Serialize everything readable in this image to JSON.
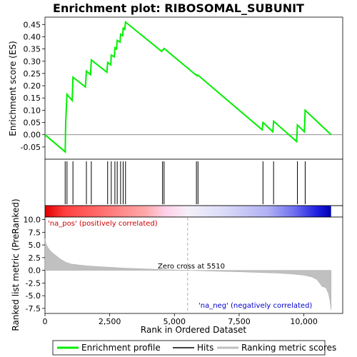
{
  "chart_data": {
    "type": "line",
    "title": "Enrichment plot: RIBOSOMAL_SUBUNIT",
    "xlabel": "Rank in Ordered Dataset",
    "colors": {
      "es_line": "#00ee00",
      "hits": "#000000",
      "metric_fill": "#c0c0c0",
      "zero_line": "#808080",
      "pos_label": "#cc0000",
      "neg_label": "#0000cc",
      "heat_pos": "#ff0000",
      "heat_neg": "#0000ff"
    },
    "es_panel": {
      "ylabel": "Enrichment score (ES)",
      "ylim": [
        -0.1,
        0.48
      ],
      "yticks": [
        -0.05,
        0.0,
        0.05,
        0.1,
        0.15,
        0.2,
        0.25,
        0.3,
        0.35,
        0.4,
        0.45
      ],
      "ytick_labels": [
        "-0.05",
        "0.00",
        "0.05",
        "0.10",
        "0.15",
        "0.20",
        "0.25",
        "0.30",
        "0.35",
        "0.40",
        "0.45"
      ],
      "series": {
        "name": "Enrichment profile",
        "x": [
          0,
          780,
          800,
          850,
          1050,
          1080,
          1560,
          1600,
          1760,
          1790,
          2390,
          2420,
          2540,
          2560,
          2680,
          2700,
          2760,
          2790,
          2900,
          2920,
          3000,
          3020,
          3080,
          3110,
          4510,
          4540,
          4570,
          4600,
          5820,
          5850,
          5880,
          5910,
          8390,
          8420,
          8800,
          8830,
          9720,
          9750,
          10020,
          10050,
          11050
        ],
        "y": [
          0.0,
          -0.07,
          0.05,
          0.165,
          0.14,
          0.235,
          0.195,
          0.26,
          0.245,
          0.305,
          0.255,
          0.295,
          0.285,
          0.325,
          0.318,
          0.355,
          0.35,
          0.385,
          0.378,
          0.41,
          0.405,
          0.435,
          0.43,
          0.46,
          0.34,
          0.345,
          0.347,
          0.352,
          0.245,
          0.245,
          0.24,
          0.243,
          0.02,
          0.05,
          0.012,
          0.055,
          -0.028,
          0.04,
          0.012,
          0.1,
          0.0
        ]
      }
    },
    "hits_x": [
      780,
      850,
      1080,
      1600,
      1790,
      2420,
      2560,
      2700,
      2790,
      2920,
      3020,
      3110,
      4540,
      4600,
      5850,
      5910,
      8420,
      8830,
      9750,
      10050
    ],
    "metric_panel": {
      "ylabel": "Ranked list metric (PreRanked)",
      "ylim": [
        -8.5,
        10.5
      ],
      "yticks": [
        -7.5,
        -5.0,
        -2.5,
        0.0,
        2.5,
        5.0,
        7.5,
        10.0
      ],
      "ytick_labels": [
        "-7.5",
        "-5.0",
        "-2.5",
        "0.0",
        "2.5",
        "5.0",
        "7.5",
        "10.0"
      ],
      "profile_x": [
        0,
        40,
        120,
        250,
        400,
        600,
        800,
        1000,
        1300,
        1600,
        2000,
        2500,
        3000,
        3500,
        4000,
        4500,
        5000,
        5510,
        6000,
        6500,
        7000,
        7500,
        8000,
        8500,
        9000,
        9500,
        10000,
        10300,
        10500,
        10650,
        10700,
        10850,
        10950,
        11000,
        11050
      ],
      "profile_y": [
        6.2,
        5.2,
        4.4,
        3.6,
        3.0,
        2.2,
        1.6,
        1.25,
        1.05,
        0.9,
        0.75,
        0.6,
        0.45,
        0.35,
        0.25,
        0.15,
        0.08,
        0.0,
        -0.08,
        -0.15,
        -0.22,
        -0.3,
        -0.38,
        -0.47,
        -0.55,
        -0.7,
        -0.95,
        -1.3,
        -1.8,
        -2.8,
        -3.2,
        -3.4,
        -4.6,
        -5.8,
        -7.8
      ]
    },
    "xlim": [
      0,
      11500
    ],
    "xticks": [
      0,
      2500,
      5000,
      7500,
      10000
    ],
    "xtick_labels": [
      "0",
      "2,500",
      "5,000",
      "7,500",
      "10,000"
    ],
    "zero_cross": 5510,
    "n_genes": 11050,
    "annotations": {
      "pos": "'na_pos' (positively correlated)",
      "neg": "'na_neg' (negatively correlated)",
      "zero": "Zero cross at 5510"
    },
    "legend": {
      "placement": "bottom",
      "items": [
        "Enrichment profile",
        "Hits",
        "Ranking metric scores"
      ]
    }
  }
}
